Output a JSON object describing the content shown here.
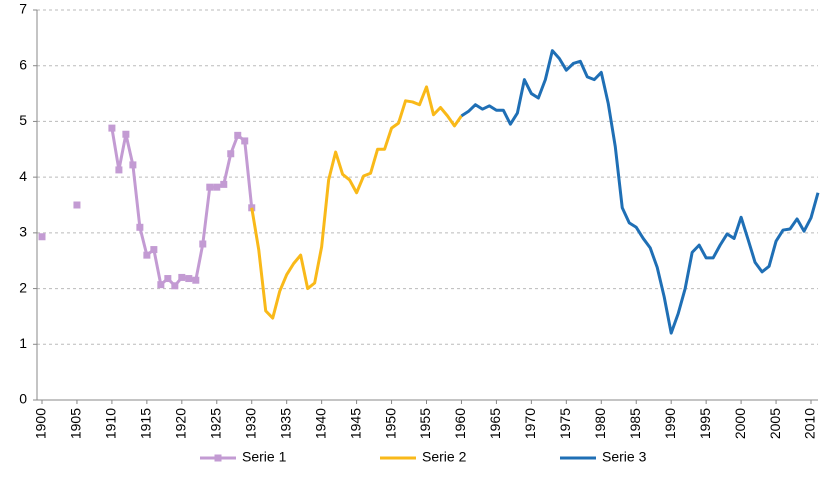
{
  "chart_data": {
    "type": "line",
    "x": [
      1900,
      1901,
      1902,
      1903,
      1904,
      1905,
      1906,
      1907,
      1908,
      1909,
      1910,
      1911,
      1912,
      1913,
      1914,
      1915,
      1916,
      1917,
      1918,
      1919,
      1920,
      1921,
      1922,
      1923,
      1924,
      1925,
      1926,
      1927,
      1928,
      1929,
      1930,
      1931,
      1932,
      1933,
      1934,
      1935,
      1936,
      1937,
      1938,
      1939,
      1940,
      1941,
      1942,
      1943,
      1944,
      1945,
      1946,
      1947,
      1948,
      1949,
      1950,
      1951,
      1952,
      1953,
      1954,
      1955,
      1956,
      1957,
      1958,
      1959,
      1960,
      1961,
      1962,
      1963,
      1964,
      1965,
      1966,
      1967,
      1968,
      1969,
      1970,
      1971,
      1972,
      1973,
      1974,
      1975,
      1976,
      1977,
      1978,
      1979,
      1980,
      1981,
      1982,
      1983,
      1984,
      1985,
      1986,
      1987,
      1988,
      1989,
      1990,
      1991,
      1992,
      1993,
      1994,
      1995,
      1996,
      1997,
      1998,
      1999,
      2000,
      2001,
      2002,
      2003,
      2004,
      2005,
      2006,
      2007,
      2008,
      2009,
      2010,
      2011
    ],
    "series": [
      {
        "name": "Serie 1",
        "color": "#c39bd3",
        "marker": "square",
        "values": [
          2.93,
          null,
          null,
          null,
          null,
          3.5,
          null,
          null,
          null,
          null,
          4.88,
          4.13,
          4.77,
          4.22,
          3.1,
          2.6,
          2.7,
          2.07,
          2.18,
          2.05,
          2.2,
          2.18,
          2.15,
          2.8,
          3.82,
          3.82,
          3.87,
          4.42,
          4.75,
          4.65,
          3.45,
          null,
          null,
          null,
          null,
          null,
          null,
          null,
          null,
          null,
          null,
          null,
          null,
          null,
          null,
          null,
          null,
          null,
          null,
          null,
          null,
          null,
          null,
          null,
          null,
          null,
          null,
          null,
          null,
          null,
          null,
          null,
          null,
          null,
          null,
          null,
          null,
          null,
          null,
          null,
          null,
          null,
          null,
          null,
          null,
          null,
          null,
          null,
          null,
          null,
          null,
          null,
          null,
          null,
          null,
          null,
          null,
          null,
          null,
          null,
          null,
          null,
          null,
          null,
          null,
          null,
          null,
          null,
          null,
          null,
          null,
          null,
          null,
          null,
          null,
          null,
          null,
          null,
          null,
          null,
          null,
          null
        ]
      },
      {
        "name": "Serie 2",
        "color": "#f9b919",
        "values": [
          null,
          null,
          null,
          null,
          null,
          null,
          null,
          null,
          null,
          null,
          null,
          null,
          null,
          null,
          null,
          null,
          null,
          null,
          null,
          null,
          null,
          null,
          null,
          null,
          null,
          null,
          null,
          null,
          null,
          null,
          3.45,
          2.7,
          1.6,
          1.47,
          1.95,
          2.25,
          2.45,
          2.6,
          2.0,
          2.1,
          2.75,
          3.95,
          4.45,
          4.05,
          3.95,
          3.72,
          4.02,
          4.07,
          4.5,
          4.5,
          4.88,
          4.97,
          5.37,
          5.35,
          5.3,
          5.62,
          5.12,
          5.25,
          5.1,
          4.92,
          5.1,
          null,
          null,
          null,
          null,
          null,
          null,
          null,
          null,
          null,
          null,
          null,
          null,
          null,
          null,
          null,
          null,
          null,
          null,
          null,
          null,
          null,
          null,
          null,
          null,
          null,
          null,
          null,
          null,
          null,
          null,
          null,
          null,
          null,
          null,
          null,
          null,
          null,
          null,
          null,
          null,
          null,
          null,
          null,
          null,
          null,
          null,
          null,
          null,
          null,
          null,
          null
        ]
      },
      {
        "name": "Serie 3",
        "color": "#1f6fb5",
        "values": [
          null,
          null,
          null,
          null,
          null,
          null,
          null,
          null,
          null,
          null,
          null,
          null,
          null,
          null,
          null,
          null,
          null,
          null,
          null,
          null,
          null,
          null,
          null,
          null,
          null,
          null,
          null,
          null,
          null,
          null,
          null,
          null,
          null,
          null,
          null,
          null,
          null,
          null,
          null,
          null,
          null,
          null,
          null,
          null,
          null,
          null,
          null,
          null,
          null,
          null,
          null,
          null,
          null,
          null,
          null,
          null,
          null,
          null,
          null,
          null,
          5.1,
          5.18,
          5.3,
          5.22,
          5.28,
          5.2,
          5.2,
          4.95,
          5.15,
          5.75,
          5.5,
          5.42,
          5.75,
          6.27,
          6.13,
          5.92,
          6.04,
          6.08,
          5.8,
          5.75,
          5.88,
          5.32,
          4.55,
          3.45,
          3.18,
          3.1,
          2.9,
          2.73,
          2.38,
          1.85,
          1.2,
          1.55,
          2.0,
          2.65,
          2.78,
          2.55,
          2.55,
          2.78,
          2.98,
          2.9,
          3.28,
          2.88,
          2.47,
          2.3,
          2.4,
          2.85,
          3.05,
          3.07,
          3.25,
          3.03,
          3.27,
          3.72
        ]
      }
    ],
    "xlim": [
      1900,
      2011
    ],
    "xticks": [
      1900,
      1905,
      1910,
      1915,
      1920,
      1925,
      1930,
      1935,
      1940,
      1945,
      1950,
      1955,
      1960,
      1965,
      1970,
      1975,
      1980,
      1985,
      1990,
      1995,
      2000,
      2005,
      2010
    ],
    "ylim": [
      0,
      7
    ],
    "yticks": [
      0,
      1,
      2,
      3,
      4,
      5,
      6,
      7
    ],
    "grid": true,
    "legend": "bottom"
  }
}
